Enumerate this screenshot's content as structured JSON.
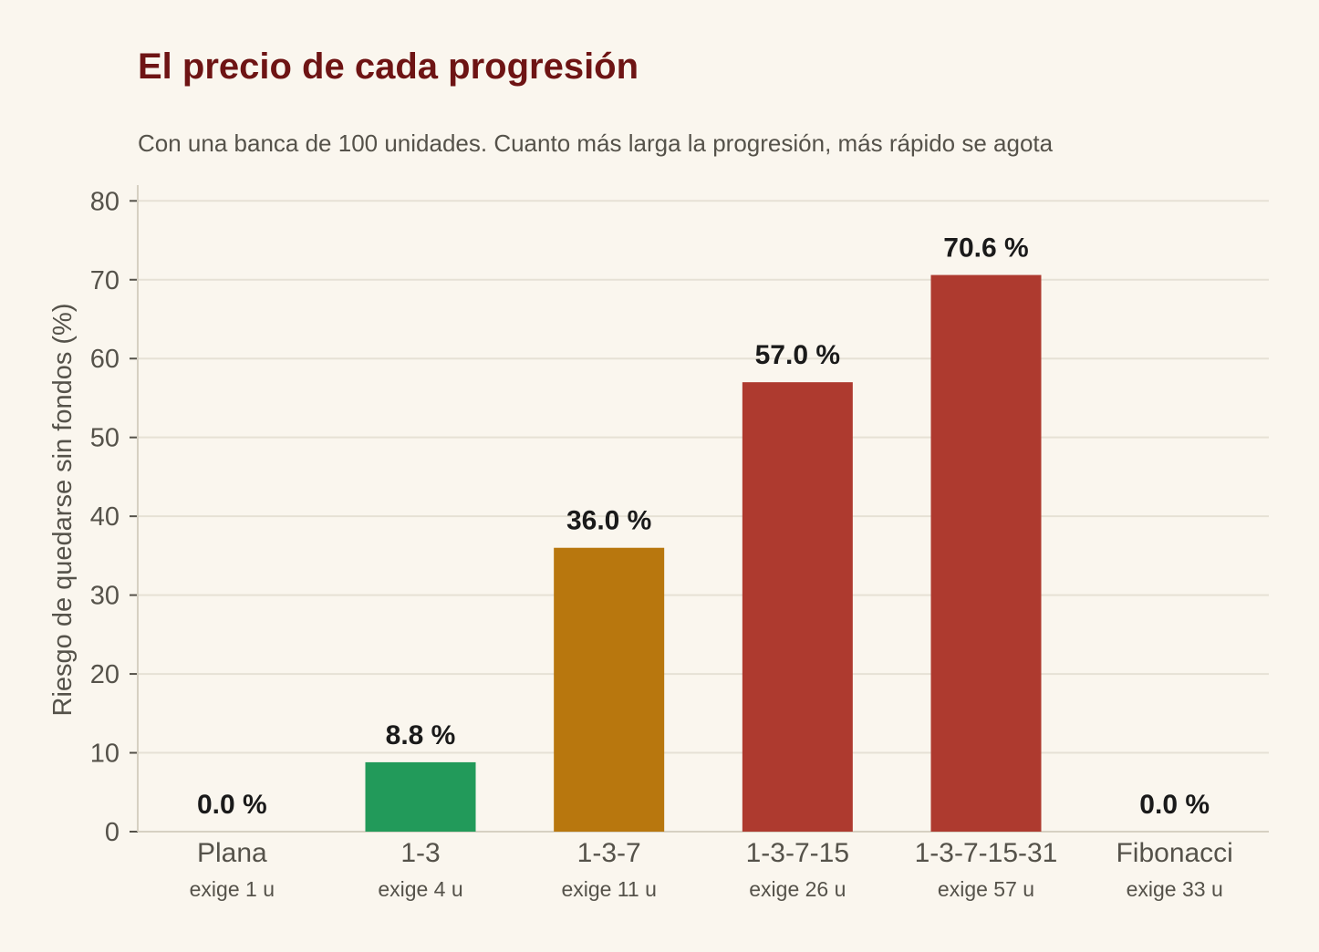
{
  "chart_data": {
    "type": "bar",
    "title": "El precio de cada progresión",
    "subtitle": "Con una banca de 100 unidades. Cuanto más larga la progresión, más rápido se agota",
    "xlabel": "",
    "ylabel": "Riesgo de quedarse sin fondos (%)",
    "ylim": [
      0,
      82
    ],
    "yticks": [
      0,
      10,
      20,
      30,
      40,
      50,
      60,
      70,
      80
    ],
    "grid": "horizontal",
    "categories": [
      "Plana",
      "1-3",
      "1-3-7",
      "1-3-7-15",
      "1-3-7-15-31",
      "Fibonacci"
    ],
    "sublabels": [
      "exige 1 u",
      "exige 4 u",
      "exige 11 u",
      "exige 26 u",
      "exige 57 u",
      "exige 33 u"
    ],
    "values": [
      0.0,
      8.8,
      36.0,
      57.0,
      70.6,
      0.0
    ],
    "value_labels": [
      "0.0 %",
      "8.8 %",
      "36.0 %",
      "57.0 %",
      "70.6 %",
      "0.0 %"
    ],
    "colors": [
      "#229a5a",
      "#229a5a",
      "#b8770e",
      "#ae3a2f",
      "#ae3a2f",
      "#ae3a2f"
    ]
  }
}
